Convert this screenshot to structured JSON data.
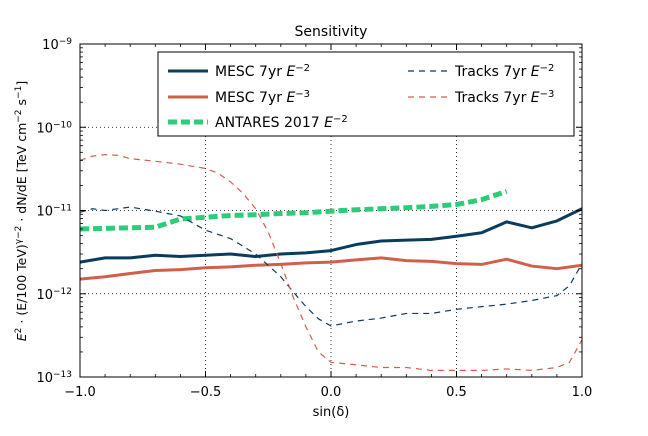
{
  "chart_data": {
    "type": "line",
    "title": "Sensitivity",
    "xlabel": "sin(δ)",
    "ylabel": "E² · (E/100 TeV)^(γ−2) · dN/dE  [TeV cm⁻² s⁻¹]",
    "ylabel_parts": {
      "e2": "E",
      "e2_sup": "2",
      "mid": " · (E/100 TeV)",
      "gamma_sup": "γ−2",
      "dnde": " · dN/dE  [TeV cm",
      "cm_sup": "−2",
      "s": " s",
      "s_sup": "−1",
      "close": "]"
    },
    "xlim": [
      -1.0,
      1.0
    ],
    "ylim": [
      1e-13,
      1e-09
    ],
    "yscale": "log",
    "grid": true,
    "legend_position": "top",
    "xticks": [
      {
        "v": -1.0,
        "label": "−1.0"
      },
      {
        "v": -0.5,
        "label": "−0.5"
      },
      {
        "v": 0.0,
        "label": "0.0"
      },
      {
        "v": 0.5,
        "label": "0.5"
      },
      {
        "v": 1.0,
        "label": "1.0"
      }
    ],
    "yticks": [
      {
        "exp": -13,
        "base": "10",
        "sup": "−13"
      },
      {
        "exp": -12,
        "base": "10",
        "sup": "−12"
      },
      {
        "exp": -11,
        "base": "10",
        "sup": "−11"
      },
      {
        "exp": -10,
        "base": "10",
        "sup": "−10"
      },
      {
        "exp": -9,
        "base": "10",
        "sup": "−9"
      }
    ],
    "series": [
      {
        "name": "MESC 7yr E^-2",
        "label_main": "MESC 7yr ",
        "label_e": "E",
        "label_sup": "−2",
        "color": "#0b3c5d",
        "style": "solid",
        "width": 3,
        "x": [
          -1.0,
          -0.9,
          -0.8,
          -0.7,
          -0.6,
          -0.5,
          -0.4,
          -0.3,
          -0.2,
          -0.1,
          0.0,
          0.1,
          0.2,
          0.3,
          0.4,
          0.5,
          0.6,
          0.7,
          0.8,
          0.9,
          1.0
        ],
        "y": [
          2.4e-12,
          2.7e-12,
          2.7e-12,
          2.9e-12,
          2.8e-12,
          2.9e-12,
          3e-12,
          2.8e-12,
          3e-12,
          3.1e-12,
          3.3e-12,
          3.9e-12,
          4.3e-12,
          4.4e-12,
          4.5e-12,
          4.9e-12,
          5.4e-12,
          7.3e-12,
          6.2e-12,
          7.5e-12,
          1.05e-11
        ]
      },
      {
        "name": "MESC 7yr E^-3",
        "label_main": "MESC 7yr ",
        "label_e": "E",
        "label_sup": "−3",
        "color": "#d1604b",
        "style": "solid",
        "width": 3,
        "x": [
          -1.0,
          -0.9,
          -0.8,
          -0.7,
          -0.6,
          -0.5,
          -0.4,
          -0.3,
          -0.2,
          -0.1,
          0.0,
          0.1,
          0.2,
          0.3,
          0.4,
          0.5,
          0.6,
          0.7,
          0.8,
          0.9,
          1.0
        ],
        "y": [
          1.5e-12,
          1.6e-12,
          1.75e-12,
          1.9e-12,
          1.95e-12,
          2.05e-12,
          2.1e-12,
          2.2e-12,
          2.25e-12,
          2.35e-12,
          2.4e-12,
          2.55e-12,
          2.7e-12,
          2.5e-12,
          2.45e-12,
          2.3e-12,
          2.25e-12,
          2.6e-12,
          2.15e-12,
          2e-12,
          2.2e-12
        ]
      },
      {
        "name": "ANTARES 2017 E^-2",
        "label_main": "ANTARES 2017 ",
        "label_e": "E",
        "label_sup": "−2",
        "color": "#2ecc7a",
        "style": "dashed-thick",
        "width": 5,
        "x": [
          -1.0,
          -0.9,
          -0.8,
          -0.7,
          -0.6,
          -0.5,
          -0.4,
          -0.3,
          -0.2,
          -0.1,
          0.0,
          0.1,
          0.2,
          0.3,
          0.4,
          0.5,
          0.6,
          0.7
        ],
        "y": [
          6e-12,
          6.1e-12,
          6.2e-12,
          6.3e-12,
          7.9e-12,
          8.3e-12,
          8.7e-12,
          8.9e-12,
          9.2e-12,
          9.4e-12,
          9.8e-12,
          1.02e-11,
          1.05e-11,
          1.08e-11,
          1.12e-11,
          1.18e-11,
          1.35e-11,
          1.7e-11
        ]
      },
      {
        "name": "Tracks 7yr E^-2",
        "label_main": "Tracks 7yr ",
        "label_e": "E",
        "label_sup": "−2",
        "color": "#0b3c5d",
        "style": "dashed",
        "width": 1.2,
        "x": [
          -1.0,
          -0.95,
          -0.9,
          -0.8,
          -0.7,
          -0.6,
          -0.5,
          -0.4,
          -0.3,
          -0.2,
          -0.15,
          -0.1,
          -0.05,
          0.0,
          0.05,
          0.1,
          0.2,
          0.3,
          0.4,
          0.5,
          0.6,
          0.7,
          0.8,
          0.9,
          0.95,
          1.0
        ],
        "y": [
          9.5e-12,
          1.05e-11,
          1e-11,
          1.1e-11,
          9.8e-12,
          8.6e-12,
          5.8e-12,
          4.6e-12,
          3e-12,
          1.6e-12,
          1.05e-12,
          7e-13,
          5e-13,
          4.1e-13,
          4.4e-13,
          4.7e-13,
          5.1e-13,
          5.8e-13,
          5.8e-13,
          6.5e-13,
          7e-13,
          7.5e-13,
          8.3e-13,
          9.5e-13,
          1.25e-12,
          2.3e-12
        ]
      },
      {
        "name": "Tracks 7yr E^-3",
        "label_main": "Tracks 7yr ",
        "label_e": "E",
        "label_sup": "−3",
        "color": "#d1604b",
        "style": "dashed",
        "width": 1.2,
        "x": [
          -1.0,
          -0.95,
          -0.9,
          -0.85,
          -0.8,
          -0.7,
          -0.6,
          -0.5,
          -0.45,
          -0.4,
          -0.35,
          -0.3,
          -0.25,
          -0.2,
          -0.15,
          -0.1,
          -0.05,
          0.0,
          0.1,
          0.2,
          0.3,
          0.4,
          0.5,
          0.6,
          0.7,
          0.8,
          0.9,
          0.95,
          1.0
        ],
        "y": [
          4e-11,
          4.5e-11,
          4.7e-11,
          4.6e-11,
          4.2e-11,
          3.9e-11,
          3.6e-11,
          3.2e-11,
          2.8e-11,
          2.2e-11,
          1.6e-11,
          1.05e-11,
          5.5e-12,
          2.3e-12,
          9e-13,
          4e-13,
          2e-13,
          1.5e-13,
          1.4e-13,
          1.3e-13,
          1.3e-13,
          1.2e-13,
          1.2e-13,
          1.2e-13,
          1.25e-13,
          1.2e-13,
          1.3e-13,
          1.5e-13,
          2.8e-13
        ]
      }
    ]
  }
}
